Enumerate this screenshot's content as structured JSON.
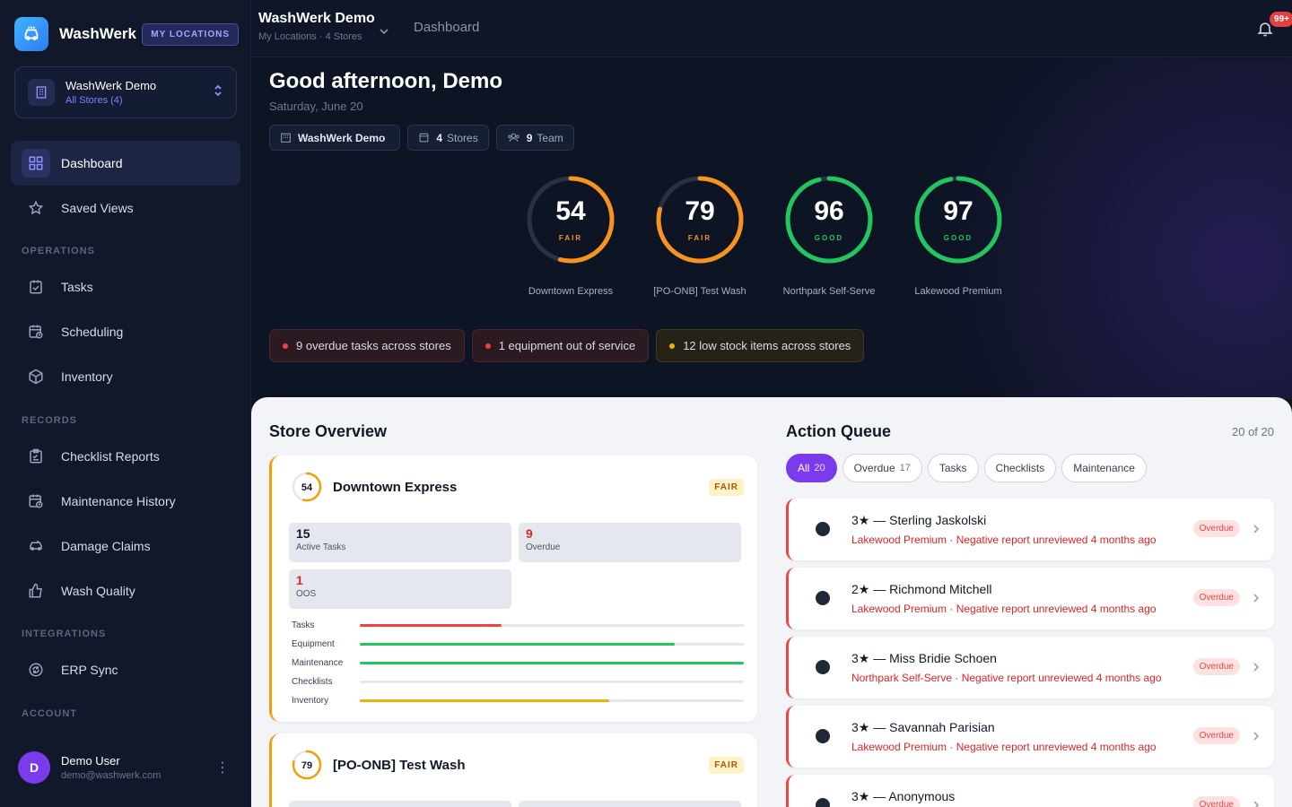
{
  "brand": {
    "name": "WashWerk",
    "tag": "MY LOCATIONS"
  },
  "org": {
    "name": "WashWerk Demo",
    "sub": "All Stores (4)"
  },
  "nav": {
    "dashboard": "Dashboard",
    "saved_views": "Saved Views",
    "operations_label": "OPERATIONS",
    "tasks": "Tasks",
    "scheduling": "Scheduling",
    "inventory": "Inventory",
    "records_label": "RECORDS",
    "checklist_reports": "Checklist Reports",
    "maintenance_history": "Maintenance History",
    "damage_claims": "Damage Claims",
    "wash_quality": "Wash Quality",
    "integrations_label": "INTEGRATIONS",
    "erp_sync": "ERP Sync",
    "account_label": "ACCOUNT"
  },
  "user": {
    "initial": "D",
    "name": "Demo User",
    "email": "demo@washwerk.com"
  },
  "topbar": {
    "title": "WashWerk Demo",
    "sub": "My Locations · 4 Stores",
    "crumb": "Dashboard",
    "notif_badge": "99+"
  },
  "hero": {
    "greeting": "Good afternoon, Demo",
    "date": "Saturday, June 20",
    "chips": {
      "org": "WashWerk Demo",
      "stores_count": "4",
      "stores_label": "Stores",
      "team_count": "9",
      "team_label": "Team"
    },
    "gauges": [
      {
        "value": "54",
        "score": 54,
        "label": "FAIR",
        "name": "Downtown Express",
        "color": "#f7931e"
      },
      {
        "value": "79",
        "score": 79,
        "label": "FAIR",
        "name": "[PO-ONB] Test Wash",
        "color": "#f7931e"
      },
      {
        "value": "96",
        "score": 96,
        "label": "GOOD",
        "name": "Northpark Self-Serve",
        "color": "#22c55e"
      },
      {
        "value": "97",
        "score": 97,
        "label": "GOOD",
        "name": "Lakewood Premium",
        "color": "#22c55e"
      }
    ],
    "alerts": {
      "overdue": "9 overdue tasks across stores",
      "equipment": "1 equipment out of service",
      "stock": "12 low stock items across stores"
    }
  },
  "store_overview": {
    "title": "Store Overview",
    "stores": [
      {
        "score": "54",
        "score_num": 54,
        "name": "Downtown Express",
        "badge": "FAIR",
        "active_tasks": "15",
        "active_tasks_label": "Active Tasks",
        "overdue": "9",
        "overdue_label": "Overdue",
        "oos": "1",
        "oos_label": "OOS",
        "bars": [
          {
            "label": "Tasks",
            "value": 0.37,
            "color": "#ef4444"
          },
          {
            "label": "Equipment",
            "value": 0.82,
            "color": "#22c55e"
          },
          {
            "label": "Maintenance",
            "value": 1.0,
            "color": "#22c55e"
          },
          {
            "label": "Checklists",
            "value": 0.0,
            "color": "#22c55e"
          },
          {
            "label": "Inventory",
            "value": 0.65,
            "color": "#eab308"
          }
        ]
      },
      {
        "score": "79",
        "score_num": 79,
        "name": "[PO-ONB] Test Wash",
        "badge": "FAIR"
      }
    ]
  },
  "action_queue": {
    "title": "Action Queue",
    "count": "20 of 20",
    "filters": [
      {
        "label": "All",
        "count": "20"
      },
      {
        "label": "Overdue",
        "count": "17"
      },
      {
        "label": "Tasks",
        "count": ""
      },
      {
        "label": "Checklists",
        "count": ""
      },
      {
        "label": "Maintenance",
        "count": ""
      }
    ],
    "items": [
      {
        "title": "3★ — Sterling Jaskolski",
        "sub": "Lakewood Premium · Negative report unreviewed 4 months ago",
        "badge": "Overdue"
      },
      {
        "title": "2★ — Richmond Mitchell",
        "sub": "Lakewood Premium · Negative report unreviewed 4 months ago",
        "badge": "Overdue"
      },
      {
        "title": "3★ — Miss Bridie Schoen",
        "sub": "Northpark Self-Serve · Negative report unreviewed 4 months ago",
        "badge": "Overdue"
      },
      {
        "title": "3★ — Savannah Parisian",
        "sub": "Lakewood Premium · Negative report unreviewed 4 months ago",
        "badge": "Overdue"
      },
      {
        "title": "3★ — Anonymous",
        "sub": "",
        "badge": "Overdue"
      }
    ]
  }
}
